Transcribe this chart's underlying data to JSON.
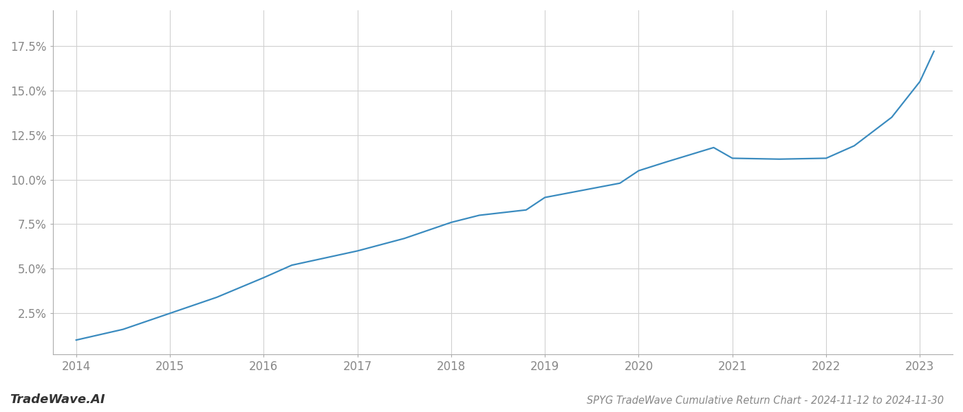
{
  "x_values": [
    2014,
    2014.5,
    2015,
    2015.5,
    2016,
    2016.3,
    2017,
    2017.5,
    2018,
    2018.3,
    2018.8,
    2019,
    2019.5,
    2019.8,
    2020,
    2020.3,
    2020.8,
    2021,
    2021.5,
    2022,
    2022.3,
    2022.7,
    2023,
    2023.15
  ],
  "y_values": [
    1.0,
    1.6,
    2.5,
    3.4,
    4.5,
    5.2,
    6.0,
    6.7,
    7.6,
    8.0,
    8.3,
    9.0,
    9.5,
    9.8,
    10.5,
    11.0,
    11.8,
    11.2,
    11.15,
    11.2,
    11.9,
    13.5,
    15.5,
    17.2
  ],
  "line_color": "#3a8bbf",
  "line_width": 1.6,
  "background_color": "#ffffff",
  "grid_color": "#d0d0d0",
  "tick_label_color": "#888888",
  "title_text": "SPYG TradeWave Cumulative Return Chart - 2024-11-12 to 2024-11-30",
  "watermark_text": "TradeWave.AI",
  "x_ticks": [
    2014,
    2015,
    2016,
    2017,
    2018,
    2019,
    2020,
    2021,
    2022,
    2023
  ],
  "y_ticks": [
    2.5,
    5.0,
    7.5,
    10.0,
    12.5,
    15.0,
    17.5
  ],
  "xlim": [
    2013.75,
    2023.35
  ],
  "ylim": [
    0.2,
    19.5
  ],
  "title_fontsize": 10.5,
  "tick_fontsize": 12,
  "watermark_fontsize": 13
}
